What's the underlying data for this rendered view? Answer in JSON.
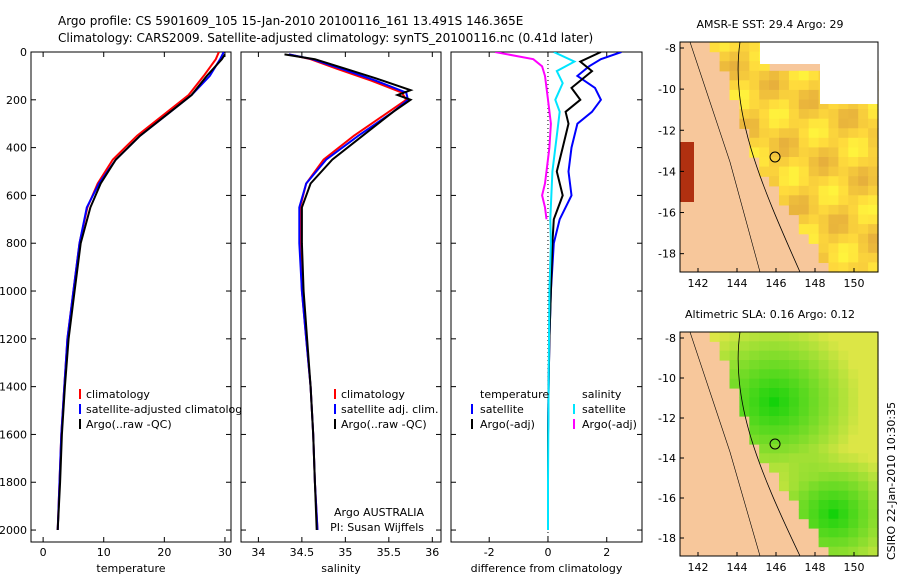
{
  "header": {
    "line1": "Argo profile: CS 5901609_105 15-Jan-2010 20100116_161 13.491S 146.365E",
    "line2": "Climatology: CARS2009. Satellite-adjusted climatology: synTS_20100116.nc (0.41d later)"
  },
  "colors": {
    "climatology": "#ff0000",
    "satellite": "#0000ff",
    "argo": "#000000",
    "salinity_satellite": "#00e5ff",
    "salinity_argo": "#ff00ff",
    "land": "#f7c79b"
  },
  "chart_data": [
    {
      "type": "line",
      "panel": "temperature",
      "xlabel": "temperature",
      "xlim": [
        -2,
        31
      ],
      "ylim": [
        2050,
        0
      ],
      "xticks": [
        0,
        10,
        20,
        30
      ],
      "yticks": [
        0,
        200,
        400,
        600,
        800,
        1000,
        1200,
        1400,
        1600,
        1800,
        2000
      ],
      "legend": [
        "climatology",
        "satellite-adjusted climatolog",
        "Argo(..raw -QC)"
      ],
      "legend_location": "lower-center",
      "series": [
        {
          "name": "climatology",
          "color_key": "climatology",
          "points": [
            [
              29.0,
              0
            ],
            [
              28.5,
              30
            ],
            [
              26.5,
              100
            ],
            [
              24.0,
              180
            ],
            [
              20.5,
              250
            ],
            [
              15.5,
              350
            ],
            [
              11.5,
              450
            ],
            [
              9.0,
              550
            ],
            [
              7.3,
              650
            ],
            [
              6.0,
              800
            ],
            [
              5.0,
              1000
            ],
            [
              4.0,
              1200
            ],
            [
              3.5,
              1400
            ],
            [
              3.0,
              1600
            ],
            [
              2.7,
              1800
            ],
            [
              2.4,
              2000
            ]
          ]
        },
        {
          "name": "satellite-adjusted climatolog",
          "color_key": "satellite",
          "points": [
            [
              29.8,
              0
            ],
            [
              29.2,
              30
            ],
            [
              27.5,
              100
            ],
            [
              24.5,
              180
            ],
            [
              21.0,
              250
            ],
            [
              16.0,
              350
            ],
            [
              12.0,
              450
            ],
            [
              9.2,
              550
            ],
            [
              7.2,
              650
            ],
            [
              6.0,
              800
            ],
            [
              5.0,
              1000
            ],
            [
              4.0,
              1200
            ],
            [
              3.5,
              1400
            ],
            [
              3.0,
              1600
            ],
            [
              2.7,
              1800
            ],
            [
              2.4,
              2000
            ]
          ]
        },
        {
          "name": "Argo(..raw -QC)",
          "color_key": "argo",
          "points": [
            [
              30.0,
              10
            ],
            [
              29.5,
              30
            ],
            [
              27.0,
              100
            ],
            [
              24.5,
              180
            ],
            [
              21.0,
              250
            ],
            [
              16.0,
              350
            ],
            [
              12.0,
              450
            ],
            [
              9.5,
              550
            ],
            [
              7.8,
              650
            ],
            [
              6.2,
              800
            ],
            [
              5.2,
              1000
            ],
            [
              4.2,
              1200
            ],
            [
              3.6,
              1400
            ],
            [
              3.1,
              1600
            ],
            [
              2.8,
              1800
            ],
            [
              2.4,
              2000
            ]
          ]
        }
      ]
    },
    {
      "type": "line",
      "panel": "salinity",
      "xlabel": "salinity",
      "xlim": [
        33.8,
        36.1
      ],
      "ylim": [
        2050,
        0
      ],
      "xticks": [
        34,
        34.5,
        35,
        35.5,
        36
      ],
      "legend": [
        "climatology",
        "satellite adj. clim.",
        "Argo(..raw -QC)"
      ],
      "legend_location": "lower-right",
      "series": [
        {
          "name": "climatology",
          "color_key": "climatology",
          "points": [
            [
              34.35,
              10
            ],
            [
              34.6,
              30
            ],
            [
              34.9,
              70
            ],
            [
              35.3,
              120
            ],
            [
              35.65,
              170
            ],
            [
              35.7,
              200
            ],
            [
              35.5,
              250
            ],
            [
              35.1,
              350
            ],
            [
              34.75,
              450
            ],
            [
              34.55,
              550
            ],
            [
              34.48,
              650
            ],
            [
              34.48,
              800
            ],
            [
              34.5,
              1000
            ],
            [
              34.55,
              1200
            ],
            [
              34.6,
              1400
            ],
            [
              34.63,
              1600
            ],
            [
              34.65,
              1800
            ],
            [
              34.68,
              2000
            ]
          ]
        },
        {
          "name": "satellite adj. clim.",
          "color_key": "satellite",
          "points": [
            [
              34.35,
              10
            ],
            [
              34.62,
              30
            ],
            [
              34.95,
              70
            ],
            [
              35.35,
              120
            ],
            [
              35.7,
              170
            ],
            [
              35.72,
              200
            ],
            [
              35.55,
              250
            ],
            [
              35.15,
              350
            ],
            [
              34.78,
              450
            ],
            [
              34.55,
              550
            ],
            [
              34.47,
              650
            ],
            [
              34.47,
              800
            ],
            [
              34.5,
              1000
            ],
            [
              34.55,
              1200
            ],
            [
              34.6,
              1400
            ],
            [
              34.63,
              1600
            ],
            [
              34.65,
              1800
            ],
            [
              34.68,
              2000
            ]
          ]
        },
        {
          "name": "Argo(..raw -QC)",
          "color_key": "argo",
          "points": [
            [
              34.3,
              10
            ],
            [
              34.65,
              30
            ],
            [
              35.0,
              70
            ],
            [
              35.35,
              110
            ],
            [
              35.75,
              160
            ],
            [
              35.6,
              180
            ],
            [
              35.75,
              200
            ],
            [
              35.55,
              250
            ],
            [
              35.2,
              350
            ],
            [
              34.85,
              450
            ],
            [
              34.6,
              550
            ],
            [
              34.5,
              650
            ],
            [
              34.5,
              800
            ],
            [
              34.52,
              1000
            ],
            [
              34.56,
              1200
            ],
            [
              34.6,
              1400
            ],
            [
              34.63,
              1600
            ],
            [
              34.65,
              1800
            ],
            [
              34.67,
              2000
            ]
          ]
        }
      ],
      "annotations": [
        "Argo AUSTRALIA",
        "PI: Susan Wijffels"
      ]
    },
    {
      "type": "line",
      "panel": "difference",
      "xlabel": "difference from climatology",
      "xlim": [
        -3.3,
        3.2
      ],
      "ylim": [
        2050,
        0
      ],
      "xticks": [
        -2,
        0,
        2
      ],
      "legend": [
        "temperature",
        "satellite",
        "Argo(-adj)",
        "salinity",
        "satellite",
        "Argo(-adj)"
      ],
      "legend_location": "lower-center",
      "series": [
        {
          "name": "temperature satellite",
          "color_key": "satellite",
          "points": [
            [
              2.5,
              0
            ],
            [
              1.8,
              30
            ],
            [
              1.4,
              60
            ],
            [
              1.0,
              100
            ],
            [
              1.6,
              150
            ],
            [
              1.8,
              200
            ],
            [
              1.5,
              250
            ],
            [
              1.0,
              300
            ],
            [
              0.8,
              400
            ],
            [
              0.7,
              500
            ],
            [
              0.8,
              600
            ],
            [
              0.4,
              700
            ],
            [
              0.2,
              800
            ],
            [
              0.1,
              1000
            ],
            [
              0.05,
              1200
            ],
            [
              0.02,
              1400
            ],
            [
              0.0,
              1600
            ],
            [
              0.0,
              1800
            ],
            [
              0.0,
              2000
            ]
          ]
        },
        {
          "name": "temperature Argo(-adj)",
          "color_key": "argo",
          "points": [
            [
              1.8,
              0
            ],
            [
              1.1,
              40
            ],
            [
              1.5,
              80
            ],
            [
              0.8,
              150
            ],
            [
              1.1,
              200
            ],
            [
              0.6,
              250
            ],
            [
              0.7,
              300
            ],
            [
              0.5,
              400
            ],
            [
              0.3,
              500
            ],
            [
              0.5,
              600
            ],
            [
              0.2,
              700
            ],
            [
              0.15,
              800
            ],
            [
              0.1,
              1000
            ],
            [
              0.05,
              1200
            ],
            [
              0.02,
              1400
            ],
            [
              0.0,
              1600
            ],
            [
              0.0,
              1800
            ],
            [
              0.0,
              2000
            ]
          ]
        },
        {
          "name": "salinity satellite",
          "color_key": "salinity_satellite",
          "points": [
            [
              0.2,
              0
            ],
            [
              0.9,
              40
            ],
            [
              0.3,
              80
            ],
            [
              0.5,
              130
            ],
            [
              0.25,
              200
            ],
            [
              0.4,
              250
            ],
            [
              0.3,
              350
            ],
            [
              0.15,
              500
            ],
            [
              0.08,
              700
            ],
            [
              0.1,
              800
            ],
            [
              0.05,
              1000
            ],
            [
              0.02,
              1400
            ],
            [
              0.0,
              1800
            ],
            [
              0.0,
              2000
            ]
          ]
        },
        {
          "name": "salinity Argo(-adj)",
          "color_key": "salinity_argo",
          "points": [
            [
              -1.8,
              0
            ],
            [
              -0.5,
              30
            ],
            [
              -0.2,
              60
            ],
            [
              -0.1,
              100
            ],
            [
              0.0,
              200
            ],
            [
              0.1,
              300
            ],
            [
              0.05,
              400
            ],
            [
              -0.1,
              550
            ],
            [
              -0.2,
              600
            ],
            [
              -0.1,
              650
            ],
            [
              -0.05,
              700
            ]
          ]
        }
      ]
    }
  ],
  "maps": [
    {
      "title": "AMSR-E SST: 29.4 Argo: 29",
      "xticks": [
        "142",
        "144",
        "146",
        "148",
        "150"
      ],
      "yticks": [
        "-8",
        "-10",
        "-12",
        "-14",
        "-16",
        "-18"
      ],
      "colorscheme": "sst"
    },
    {
      "title": "Altimetric SLA: 0.16 Argo: 0.12",
      "xticks": [
        "142",
        "144",
        "146",
        "148",
        "150"
      ],
      "yticks": [
        "-8",
        "-10",
        "-12",
        "-14",
        "-16",
        "-18"
      ],
      "colorscheme": "sla"
    }
  ],
  "credit": "CSIRO 22-Jan-2010 10:30:35"
}
